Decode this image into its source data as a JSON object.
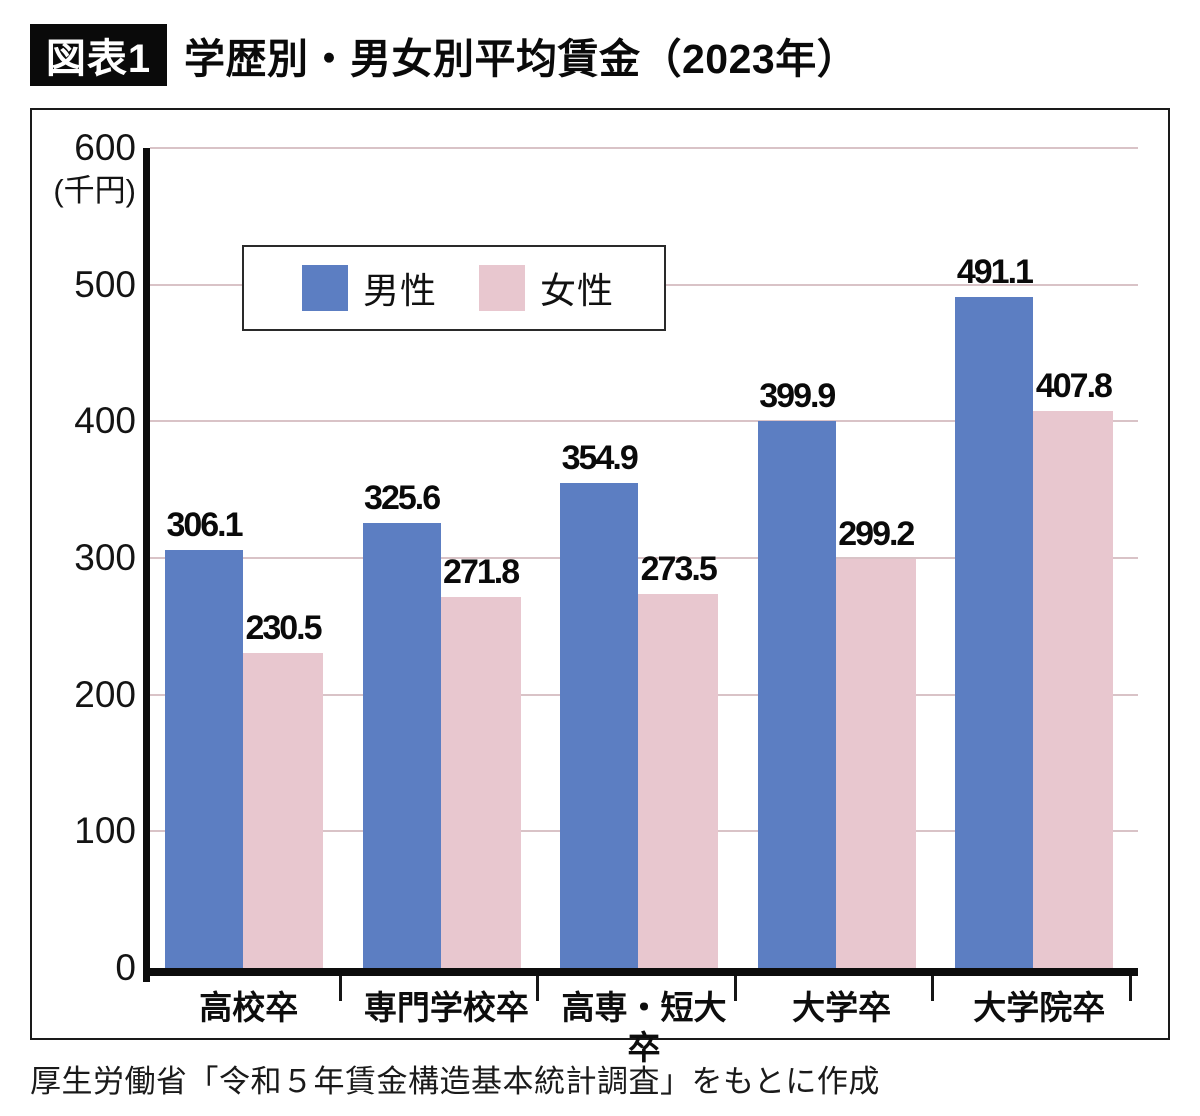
{
  "header": {
    "badge": "図表1",
    "title": "学歴別・男女別平均賃金（2023年）"
  },
  "chart_data": {
    "type": "bar",
    "title": "学歴別・男女別平均賃金（2023年）",
    "y_unit": "(千円)",
    "ylim": [
      0,
      600
    ],
    "y_ticks": [
      0,
      100,
      200,
      300,
      400,
      500,
      600
    ],
    "grid": "horizontal",
    "legend_position": "inside-top-left",
    "categories": [
      "高校卒",
      "専門学校卒",
      "高専・短大卒",
      "大学卒",
      "大学院卒"
    ],
    "series": [
      {
        "name": "男性",
        "color": "#5c7ec2",
        "values": [
          306.1,
          325.6,
          354.9,
          399.9,
          491.1
        ]
      },
      {
        "name": "女性",
        "color": "#e8c7cf",
        "values": [
          230.5,
          271.8,
          273.5,
          299.2,
          407.8
        ]
      }
    ]
  },
  "colors": {
    "gridline": "#d9c3c7",
    "axis": "#0d0d0d"
  },
  "footer": {
    "source": "厚生労働省「令和５年賃金構造基本統計調査」をもとに作成"
  }
}
